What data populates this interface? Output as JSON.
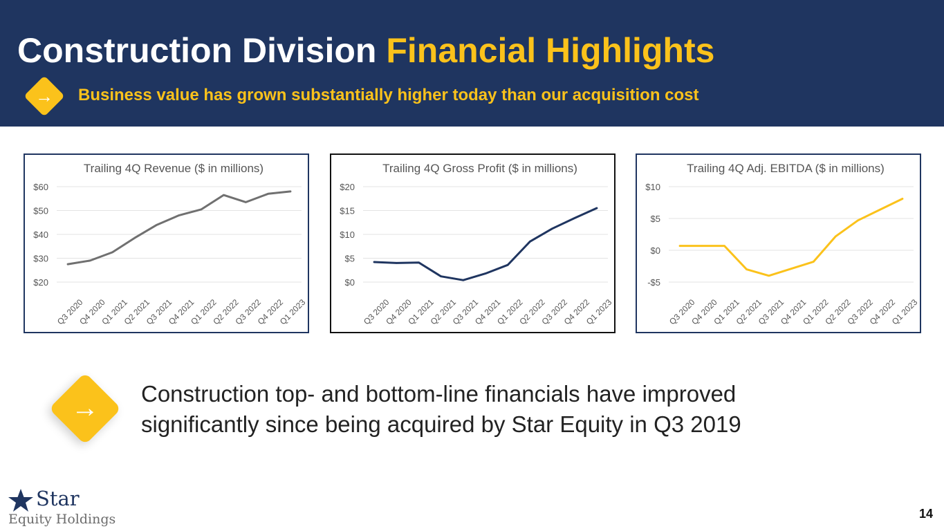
{
  "header": {
    "title_part1": "Construction Division",
    "title_part2": "Financial Highlights",
    "subtitle": "Business value has grown substantially higher today than our acquisition cost",
    "arrow_glyph": "→",
    "colors": {
      "navy": "#1f3560",
      "gold": "#fbc21b"
    }
  },
  "chart_data": [
    {
      "type": "line",
      "title": "Trailing 4Q Revenue ($ in millions)",
      "categories": [
        "Q3 2020",
        "Q4 2020",
        "Q1 2021",
        "Q2 2021",
        "Q3 2021",
        "Q4 2021",
        "Q1 2022",
        "Q2 2022",
        "Q3 2022",
        "Q4 2022",
        "Q1 2023"
      ],
      "series": [
        {
          "values": [
            27.5,
            29,
            32.5,
            38.5,
            44,
            48,
            50.5,
            56.5,
            53.5,
            57,
            58
          ],
          "color": "#707070"
        }
      ],
      "ylim": [
        20,
        60
      ],
      "yticks": [
        20,
        30,
        40,
        50,
        60
      ],
      "ytick_labels": [
        "$20",
        "$30",
        "$40",
        "$50",
        "$60"
      ],
      "grid": true
    },
    {
      "type": "line",
      "title": "Trailing 4Q Gross Profit ($ in millions)",
      "categories": [
        "Q3 2020",
        "Q4 2020",
        "Q1 2021",
        "Q2 2021",
        "Q3 2021",
        "Q4 2021",
        "Q1 2022",
        "Q2 2022",
        "Q3 2022",
        "Q4 2022",
        "Q1 2023"
      ],
      "series": [
        {
          "values": [
            4.2,
            4.0,
            4.1,
            1.2,
            0.4,
            1.8,
            3.6,
            8.5,
            11.2,
            13.4,
            15.5
          ],
          "color": "#1f3560"
        }
      ],
      "ylim": [
        0,
        20
      ],
      "yticks": [
        0,
        5,
        10,
        15,
        20
      ],
      "ytick_labels": [
        "$0",
        "$5",
        "$10",
        "$15",
        "$20"
      ],
      "grid": true
    },
    {
      "type": "line",
      "title": "Trailing 4Q Adj. EBITDA ($ in millions)",
      "categories": [
        "Q3 2020",
        "Q4 2020",
        "Q1 2021",
        "Q2 2021",
        "Q3 2021",
        "Q4 2021",
        "Q1 2022",
        "Q2 2022",
        "Q3 2022",
        "Q4 2022",
        "Q1 2023"
      ],
      "series": [
        {
          "values": [
            0.7,
            0.7,
            0.7,
            -3.0,
            -4.0,
            -2.9,
            -1.8,
            2.2,
            4.7,
            6.4,
            8.1
          ],
          "color": "#fbc21b"
        }
      ],
      "ylim": [
        -5,
        10
      ],
      "yticks": [
        -5,
        0,
        5,
        10
      ],
      "ytick_labels": [
        "-$5",
        "$0",
        "$5",
        "$10"
      ],
      "grid": true
    }
  ],
  "main": {
    "arrow_glyph": "→",
    "statement_line1": "Construction top- and bottom-line financials have improved",
    "statement_line2": "significantly since being acquired by Star Equity in Q3 2019"
  },
  "logo": {
    "word1": "Star",
    "word2": "Equity Holdings",
    "star_glyph": "★"
  },
  "page_number": "14"
}
